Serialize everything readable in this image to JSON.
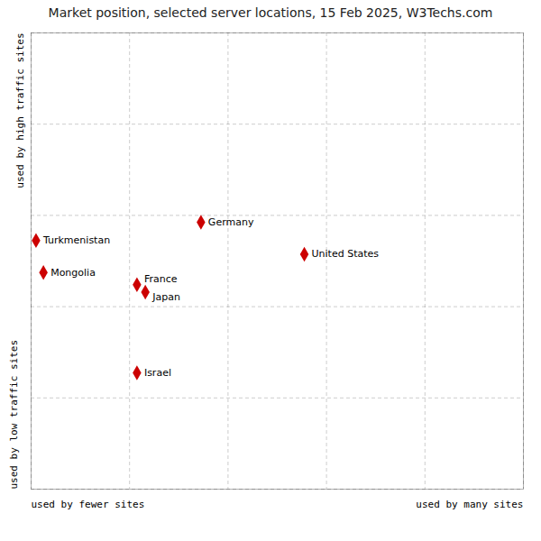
{
  "chart_data": {
    "type": "scatter",
    "title": "Market position, selected server locations, 15 Feb 2025, W3Techs.com",
    "labels": [
      "Turkmenistan",
      "Mongolia",
      "Germany",
      "United States",
      "France",
      "Japan",
      "Israel"
    ],
    "x": [
      0.01,
      0.025,
      0.345,
      0.555,
      0.215,
      0.232,
      0.215
    ],
    "y": [
      0.545,
      0.475,
      0.585,
      0.515,
      0.448,
      0.432,
      0.255
    ],
    "color": "#cc0000",
    "marker": "diamond",
    "xlabel": [
      "used by fewer sites",
      "used by many sites"
    ],
    "ylabel": [
      "used by low traffic sites",
      "used by high traffic sites"
    ],
    "xlim": [
      0,
      1
    ],
    "ylim": [
      0,
      1
    ],
    "xticks": [
      0,
      0.2,
      0.4,
      0.6,
      0.8,
      1
    ],
    "yticks": [
      0,
      0.2,
      0.4,
      0.6,
      0.8,
      1
    ],
    "grid": true,
    "tick_labels": false
  }
}
